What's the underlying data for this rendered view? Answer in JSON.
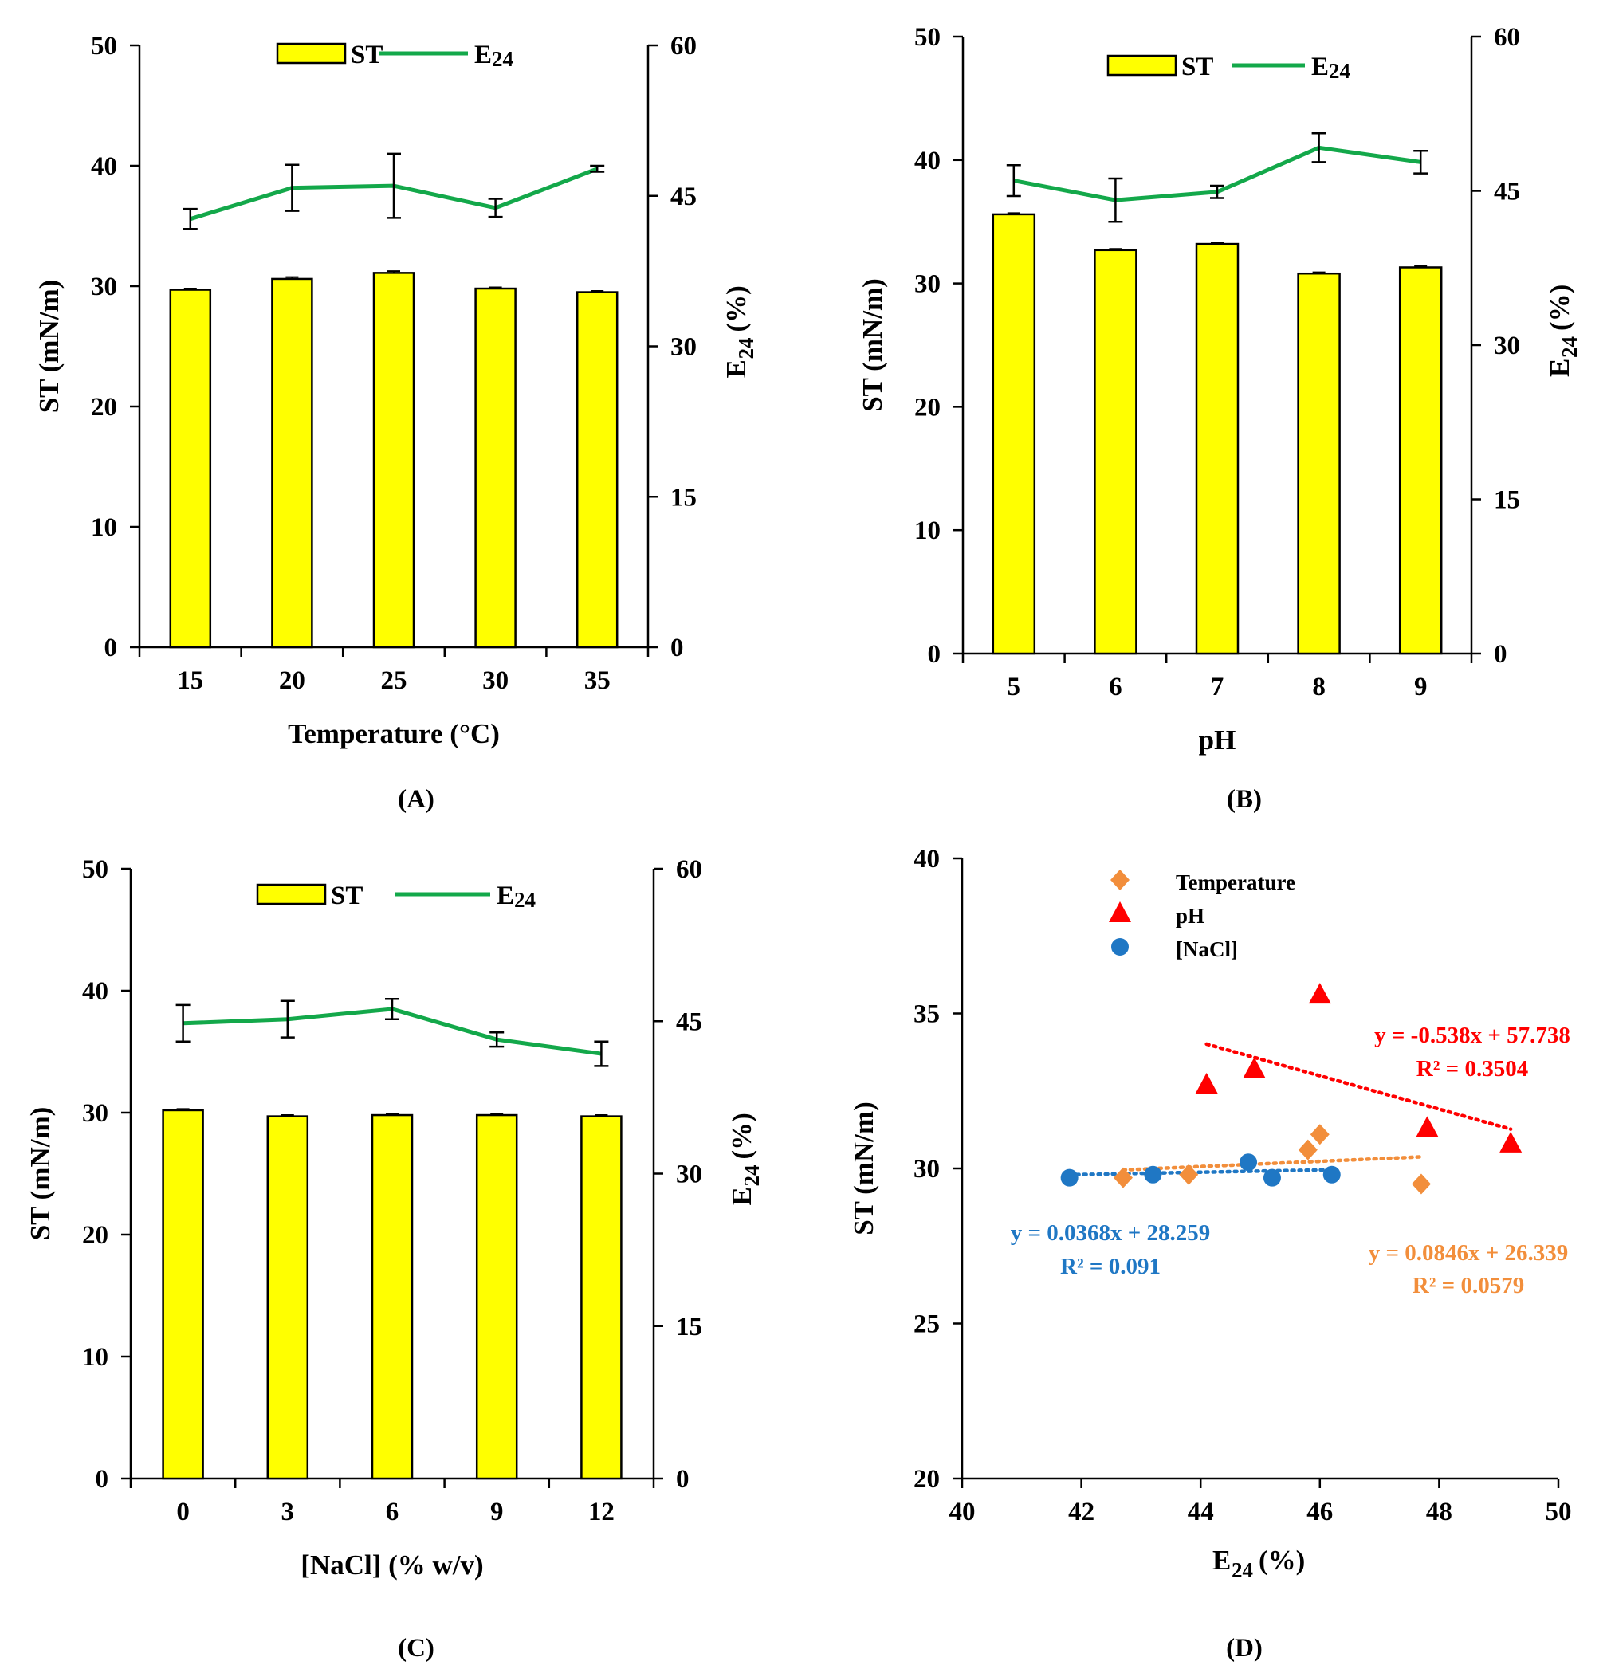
{
  "chart_data": [
    {
      "type": "bar+line",
      "panel_label": "(A)",
      "xlabel": "Temperature (°C)",
      "ylabel_left": "ST (mN/m)",
      "ylabel_right_base": "E",
      "ylabel_right_sub": "24",
      "ylabel_right_suffix": " (%)",
      "categories": [
        "15",
        "20",
        "25",
        "30",
        "35"
      ],
      "ylim_left": [
        0,
        50
      ],
      "yticks_left": [
        0,
        10,
        20,
        30,
        40,
        50
      ],
      "ylim_right": [
        0,
        60
      ],
      "yticks_right": [
        0,
        15,
        30,
        45,
        60
      ],
      "legend": {
        "bar": "ST",
        "line_base": "E",
        "line_sub": "24"
      },
      "series": [
        {
          "name": "ST",
          "axis": "left",
          "kind": "bar",
          "values": [
            29.7,
            30.6,
            31.1,
            29.8,
            29.5
          ],
          "errors": [
            0.1,
            0.15,
            0.15,
            0.1,
            0.1
          ]
        },
        {
          "name": "E24",
          "axis": "right",
          "kind": "line",
          "values": [
            42.7,
            45.8,
            46.0,
            43.8,
            47.7
          ],
          "errors": [
            1.0,
            2.3,
            3.2,
            0.9,
            0.3
          ]
        }
      ],
      "colors": {
        "bar": "#ffff00",
        "line": "#13a84a"
      }
    },
    {
      "type": "bar+line",
      "panel_label": "(B)",
      "xlabel": "pH",
      "ylabel_left": "ST (mN/m)",
      "ylabel_right_base": "E",
      "ylabel_right_sub": "24",
      "ylabel_right_suffix": " (%)",
      "categories": [
        "5",
        "6",
        "7",
        "8",
        "9"
      ],
      "ylim_left": [
        0,
        50
      ],
      "yticks_left": [
        0,
        10,
        20,
        30,
        40,
        50
      ],
      "ylim_right": [
        0,
        60
      ],
      "yticks_right": [
        0,
        15,
        30,
        45,
        60
      ],
      "legend": {
        "bar": "ST",
        "line_base": "E",
        "line_sub": "24"
      },
      "series": [
        {
          "name": "ST",
          "axis": "left",
          "kind": "bar",
          "values": [
            35.6,
            32.7,
            33.2,
            30.8,
            31.3
          ],
          "errors": [
            0.1,
            0.1,
            0.1,
            0.1,
            0.1
          ]
        },
        {
          "name": "E24",
          "axis": "right",
          "kind": "line",
          "values": [
            46.0,
            44.1,
            44.9,
            49.2,
            47.8
          ],
          "errors": [
            1.5,
            2.1,
            0.6,
            1.4,
            1.1
          ]
        }
      ],
      "colors": {
        "bar": "#ffff00",
        "line": "#13a84a"
      }
    },
    {
      "type": "bar+line",
      "panel_label": "(C)",
      "xlabel": "[NaCl] (% w/v)",
      "ylabel_left": "ST (mN/m)",
      "ylabel_right_base": "E",
      "ylabel_right_sub": "24",
      "ylabel_right_suffix": " (%)",
      "categories": [
        "0",
        "3",
        "6",
        "9",
        "12"
      ],
      "ylim_left": [
        0,
        50
      ],
      "yticks_left": [
        0,
        10,
        20,
        30,
        40,
        50
      ],
      "ylim_right": [
        0,
        60
      ],
      "yticks_right": [
        0,
        15,
        30,
        45,
        60
      ],
      "legend": {
        "bar": "ST",
        "line_base": "E",
        "line_sub": "24"
      },
      "series": [
        {
          "name": "ST",
          "axis": "left",
          "kind": "bar",
          "values": [
            30.2,
            29.7,
            29.8,
            29.8,
            29.7
          ],
          "errors": [
            0.1,
            0.1,
            0.1,
            0.1,
            0.1
          ]
        },
        {
          "name": "E24",
          "axis": "right",
          "kind": "line",
          "values": [
            44.8,
            45.2,
            46.2,
            43.2,
            41.8
          ],
          "errors": [
            1.8,
            1.8,
            1.0,
            0.7,
            1.2
          ]
        }
      ],
      "colors": {
        "bar": "#ffff00",
        "line": "#13a84a"
      }
    },
    {
      "type": "scatter",
      "panel_label": "(D)",
      "xlabel_base": "E",
      "xlabel_sub": "24",
      "xlabel_suffix": " (%)",
      "ylabel": "ST (mN/m)",
      "xlim": [
        40,
        50
      ],
      "xticks": [
        40,
        42,
        44,
        46,
        48,
        50
      ],
      "ylim": [
        20,
        40
      ],
      "yticks": [
        20,
        25,
        30,
        35,
        40
      ],
      "series": [
        {
          "name": "Temperature",
          "marker": "diamond",
          "color": "#f28e3b",
          "x": [
            42.7,
            45.8,
            46.0,
            43.8,
            47.7
          ],
          "y": [
            29.7,
            30.6,
            31.1,
            29.8,
            29.5
          ],
          "trend": {
            "slope": 0.0846,
            "intercept": 26.339,
            "x_range": [
              42.7,
              47.7
            ]
          },
          "equation": "y = 0.0846x + 26.339",
          "r2": "R² = 0.0579"
        },
        {
          "name": "pH",
          "marker": "triangle",
          "color": "#ff0000",
          "x": [
            46.0,
            44.1,
            44.9,
            49.2,
            47.8
          ],
          "y": [
            35.6,
            32.7,
            33.2,
            30.8,
            31.3
          ],
          "trend": {
            "slope": -0.538,
            "intercept": 57.738,
            "x_range": [
              44.1,
              49.2
            ]
          },
          "equation": "y = -0.538x + 57.738",
          "r2": "R² = 0.3504"
        },
        {
          "name": "[NaCl]",
          "marker": "circle",
          "color": "#1f77c4",
          "x": [
            44.8,
            45.2,
            46.2,
            43.2,
            41.8
          ],
          "y": [
            30.2,
            29.7,
            29.8,
            29.8,
            29.7
          ],
          "trend": {
            "slope": 0.0368,
            "intercept": 28.259,
            "x_range": [
              41.8,
              46.2
            ]
          },
          "equation": "y = 0.0368x + 28.259",
          "r2": "R² = 0.091"
        }
      ]
    }
  ]
}
